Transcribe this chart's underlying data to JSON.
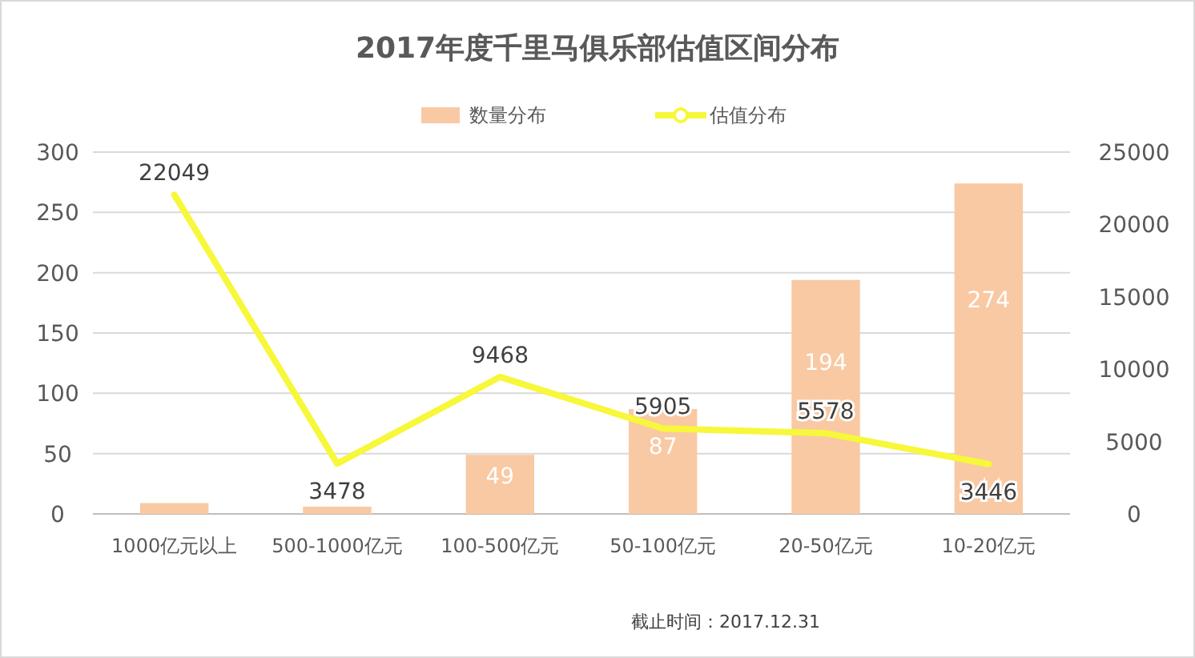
{
  "chart_data": {
    "type": "bar",
    "title": "2017年度千里马俱乐部估值区间分布",
    "categories": [
      "1000亿元以上",
      "500-1000亿元",
      "100-500亿元",
      "50-100亿元",
      "20-50亿元",
      "10-20亿元"
    ],
    "series": [
      {
        "name": "数量分布",
        "color": "#f9c9a3",
        "values": [
          9,
          6,
          49,
          87,
          194,
          274
        ],
        "value_labels": [
          null,
          null,
          "49",
          "87",
          "194",
          "274"
        ]
      },
      {
        "name": "估值分布",
        "type": "line",
        "axis": "y2",
        "color": "#f7f73b",
        "values": [
          22049,
          3478,
          9468,
          5905,
          5578,
          3446
        ],
        "data_labels": true,
        "marker": "none"
      }
    ],
    "ylim": [
      0,
      300
    ],
    "yticks": [
      0,
      50,
      100,
      150,
      200,
      250,
      300
    ],
    "y2lim": [
      0,
      25000
    ],
    "y2ticks": [
      0,
      5000,
      10000,
      15000,
      20000,
      25000
    ],
    "grid": "y",
    "legend": "top",
    "annotations": [
      "截止时间：2017.12.31"
    ]
  }
}
